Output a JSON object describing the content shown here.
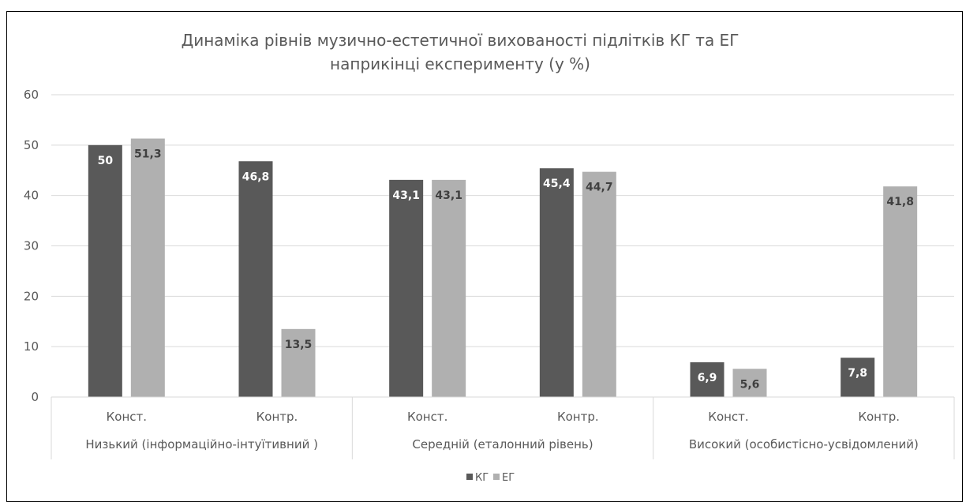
{
  "chart_data": {
    "type": "bar",
    "title_lines": [
      "Динаміка рівнів музично-естетичної вихованості підлітків  КГ та ЕГ",
      "наприкінці експерименту (у %)"
    ],
    "categories": [
      "Конст.",
      "Контр.",
      "Конст.",
      "Контр.",
      "Конст.",
      "Контр."
    ],
    "groups": [
      "Низький (інформаційно-інтуїтивний )",
      "Середній  (еталонний рівень)",
      "Високий (особистісно-усвідомлений)"
    ],
    "series": [
      {
        "name": "КГ",
        "color": "#595959",
        "values": [
          50,
          46.8,
          43.1,
          45.4,
          6.9,
          7.8
        ],
        "labels": [
          "50",
          "46,8",
          "43,1",
          "45,4",
          "6,9",
          "7,8"
        ]
      },
      {
        "name": "ЕГ",
        "color": "#b0b0b0",
        "values": [
          51.3,
          13.5,
          43.1,
          44.7,
          5.6,
          41.8
        ],
        "labels": [
          "51,3",
          "13,5",
          "43,1",
          "44,7",
          "5,6",
          "41,8"
        ]
      }
    ],
    "ylim": [
      0,
      60
    ],
    "yticks": [
      0,
      10,
      20,
      30,
      40,
      50,
      60
    ],
    "grid": true,
    "legend_position": "bottom"
  }
}
